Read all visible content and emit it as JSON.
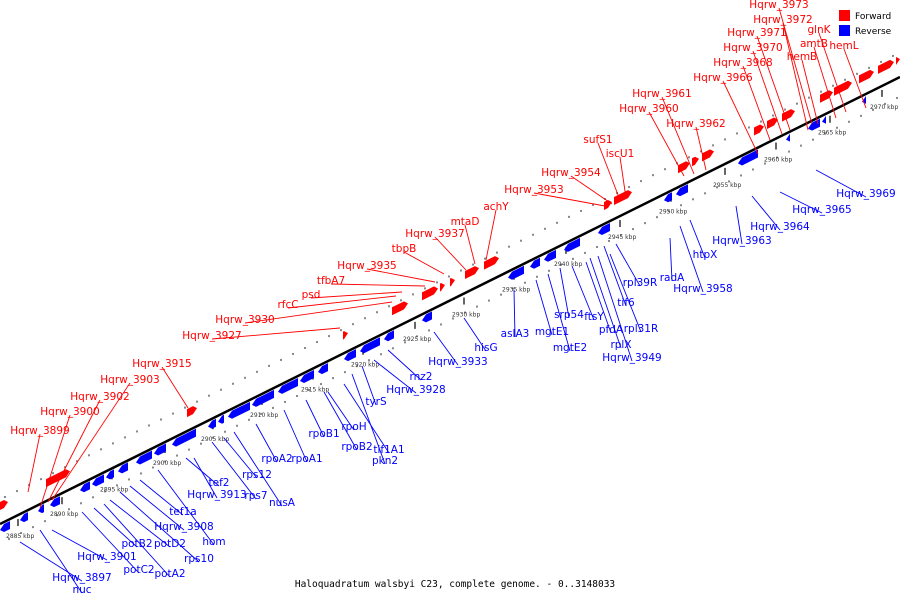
{
  "caption": "Haloquadratum walsbyi C23, complete genome. - 0..3148033",
  "legend": [
    {
      "label": "Forward",
      "color": "#ff0000"
    },
    {
      "label": "Reverse",
      "color": "#0000ff"
    }
  ],
  "colors": {
    "forward": "#ff0000",
    "reverse": "#0000ff",
    "axis": "#000000"
  },
  "scale_labels": [
    "2885 kbp",
    "2890 kbp",
    "2895 kbp",
    "2900 kbp",
    "2905 kbp",
    "2910 kbp",
    "2915 kbp",
    "2920 kbp",
    "2925 kbp",
    "2930 kbp",
    "2935 kbp",
    "2940 kbp",
    "2945 kbp",
    "2950 kbp",
    "2955 kbp",
    "2960 kbp",
    "2965 kbp",
    "2970 kbp"
  ],
  "forward_genes": [
    "Hqrw_3899",
    "Hqrw_3900",
    "Hqrw_3902",
    "Hqrw_3903",
    "Hqrw_3915",
    "Hqrw_3927",
    "Hqrw_3930",
    "rfcC",
    "psd",
    "tfbA7",
    "Hqrw_3935",
    "tbpB",
    "Hqrw_3937",
    "mtaD",
    "achY",
    "Hqrw_3953",
    "Hqrw_3954",
    "sufS1",
    "iscU1",
    "Hqrw_3960",
    "Hqrw_3961",
    "Hqrw_3962",
    "Hqrw_3966",
    "Hqrw_3968",
    "Hqrw_3970",
    "Hqrw_3971",
    "Hqrw_3972",
    "Hqrw_3973",
    "hemB",
    "amtB",
    "glnK",
    "hemL"
  ],
  "reverse_genes": [
    "Hqrw_3897",
    "nuc",
    "Hqrw_3901",
    "potC2",
    "potB2",
    "potA2",
    "potD2",
    "rps10",
    "Hqrw_3908",
    "tef1a",
    "hom",
    "tef2",
    "Hqrw_3913",
    "rps7",
    "rps12",
    "nusA",
    "rpoA2",
    "rpoA1",
    "rpoB1",
    "rpoB2",
    "rpoH",
    "tif1A1",
    "pkn2",
    "tyrS",
    "Hqrw_3928",
    "rnz2",
    "Hqrw_3933",
    "hisG",
    "aslA3",
    "mgtE1",
    "mgtE2",
    "srp54",
    "ftsY",
    "pfdA",
    "rplX",
    "Hqrw_3949",
    "rpl31R",
    "tif6",
    "rpl39R",
    "radA",
    "Hqrw_3958",
    "htpX",
    "Hqrw_3963",
    "Hqrw_3964",
    "Hqrw_3965",
    "Hqrw_3969"
  ]
}
